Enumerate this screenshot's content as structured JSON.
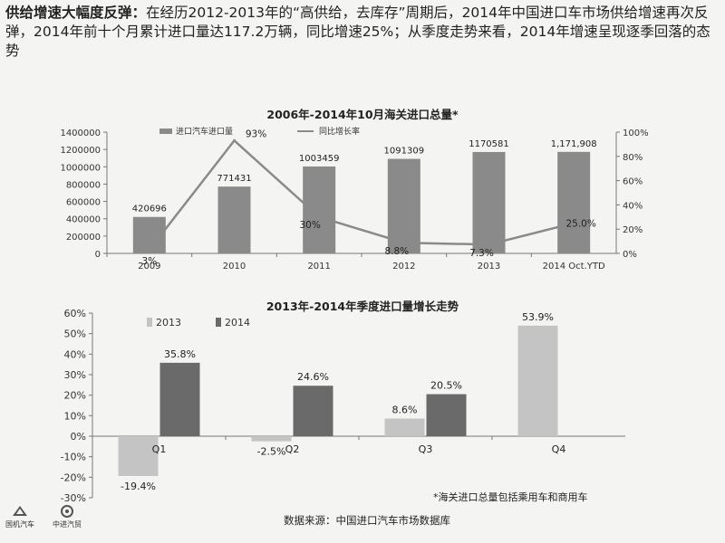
{
  "header": {
    "bold": "供给增速大幅度反弹：",
    "text": "在经历2012-2013年的“高供给，去库存”周期后，2014年中国进口车市场供给增速再次反弹，2014年前十个月累计进口量达117.2万辆，同比增速25%；从季度走势来看，2014年增速呈现逐季回落的态势"
  },
  "chart_data": [
    {
      "type": "bar+line",
      "title": "2006年-2014年10月海关进口总量*",
      "categories": [
        "2009",
        "2010",
        "2011",
        "2012",
        "2013",
        "2014 Oct.YTD"
      ],
      "series": [
        {
          "name": "进口汽车进口量",
          "kind": "bar",
          "axis": "left",
          "values": [
            420696,
            771431,
            1003459,
            1091309,
            1170581,
            1171908
          ],
          "labels": [
            "420696",
            "771431",
            "1003459",
            "1091309",
            "1170581",
            "1,171,908"
          ]
        },
        {
          "name": "同比增长率",
          "kind": "line",
          "axis": "right",
          "values": [
            3,
            93,
            30,
            8.8,
            7.3,
            25.0
          ],
          "labels": [
            "3%",
            "93%",
            "30%",
            "8.8%",
            "7.3%",
            "25.0%"
          ]
        }
      ],
      "y_left": {
        "range": [
          0,
          1400000
        ],
        "ticks": [
          "0",
          "200000",
          "400000",
          "600000",
          "800000",
          "1000000",
          "1200000",
          "1400000"
        ]
      },
      "y_right": {
        "range": [
          0,
          100
        ],
        "ticks": [
          "0%",
          "20%",
          "40%",
          "60%",
          "80%",
          "100%"
        ]
      },
      "colors": {
        "bar": "#8a8a8a",
        "line": "#8a8a8a"
      },
      "legend_position": "top"
    },
    {
      "type": "bar",
      "title": "2013年-2014年季度进口量增长走势",
      "categories": [
        "Q1",
        "Q2",
        "Q3",
        "Q4"
      ],
      "series": [
        {
          "name": "2013",
          "values": [
            -19.4,
            -2.5,
            8.6,
            53.9
          ],
          "labels": [
            "-19.4%",
            "-2.5%",
            "8.6%",
            "53.9%"
          ]
        },
        {
          "name": "2014",
          "values": [
            35.8,
            24.6,
            20.5,
            null
          ],
          "labels": [
            "35.8%",
            "24.6%",
            "20.5%",
            ""
          ]
        }
      ],
      "y": {
        "range": [
          -30,
          60
        ],
        "ticks": [
          "-30%",
          "-20%",
          "-10%",
          "0%",
          "10%",
          "20%",
          "30%",
          "40%",
          "50%",
          "60%"
        ]
      },
      "colors": {
        "2013": "#c4c4c4",
        "2014": "#6a6a6a"
      },
      "legend_position": "top-left"
    }
  ],
  "footnote": "*海关进口总量包括乘用车和商用车",
  "source": "数据来源：中国进口汽车市场数据库",
  "logos": [
    {
      "name": "国机汽车",
      "icon": "sail-logo-icon"
    },
    {
      "name": "中进汽贸",
      "icon": "ring-logo-icon"
    }
  ]
}
